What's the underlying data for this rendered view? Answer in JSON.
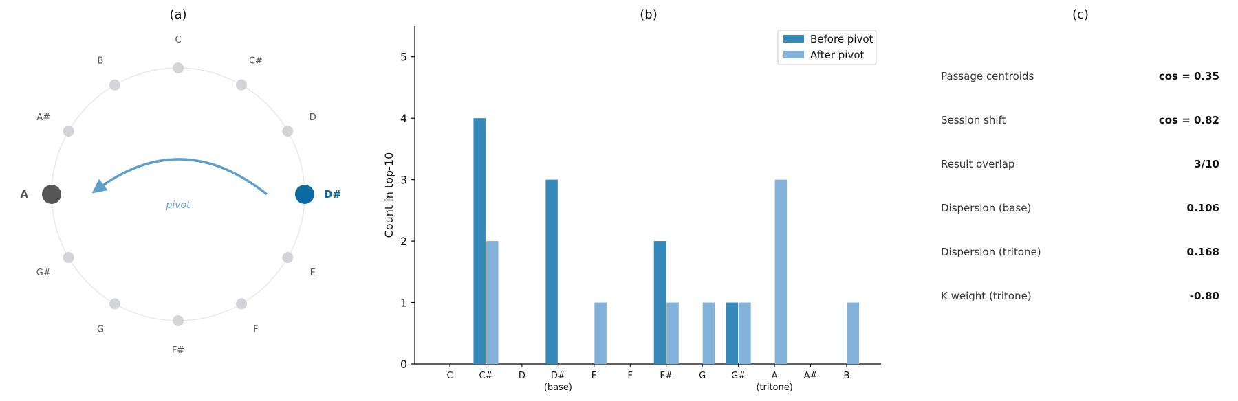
{
  "panels": {
    "a": {
      "title": "(a)"
    },
    "b": {
      "title": "(b)"
    },
    "c": {
      "title": "(c)"
    }
  },
  "circle": {
    "notes": [
      "C",
      "C#",
      "D",
      "D#",
      "E",
      "F",
      "F#",
      "G",
      "G#",
      "A",
      "A#",
      "B"
    ],
    "base": "D#",
    "tritone": "A",
    "arrow_label": "pivot",
    "colors": {
      "node": "#d3d4d8",
      "base": "#0a6aa1",
      "tritone": "#555555",
      "ring": "#e6e6e6",
      "arrow": "#5f9fcc",
      "label": "#555555"
    }
  },
  "metrics": [
    {
      "label": "Passage centroids",
      "value": "cos = 0.35"
    },
    {
      "label": "Session shift",
      "value": "cos = 0.82"
    },
    {
      "label": "Result overlap",
      "value": "3/10"
    },
    {
      "label": "Dispersion (base)",
      "value": "0.106"
    },
    {
      "label": "Dispersion (tritone)",
      "value": "0.168"
    },
    {
      "label": "K weight (tritone)",
      "value": "-0.80"
    }
  ],
  "chart_data": {
    "type": "bar",
    "categories": [
      "C",
      "C#",
      "D",
      "D#",
      "E",
      "F",
      "F#",
      "G",
      "G#",
      "A",
      "A#",
      "B"
    ],
    "category_sublabels": {
      "D#": "(base)",
      "A": "(tritone)"
    },
    "series": [
      {
        "name": "Before pivot",
        "color": "#3589b8",
        "values": [
          0,
          4,
          0,
          3,
          0,
          0,
          2,
          0,
          1,
          0,
          0,
          0
        ]
      },
      {
        "name": "After pivot",
        "color": "#82b1da",
        "values": [
          0,
          2,
          0,
          0,
          1,
          0,
          1,
          1,
          1,
          3,
          0,
          1
        ]
      }
    ],
    "title": "(b)",
    "xlabel": "",
    "ylabel": "Count in top-10",
    "ylim": [
      0,
      5.5
    ],
    "yticks": [
      0,
      1,
      2,
      3,
      4,
      5
    ],
    "grid": false,
    "legend": "top-right"
  }
}
